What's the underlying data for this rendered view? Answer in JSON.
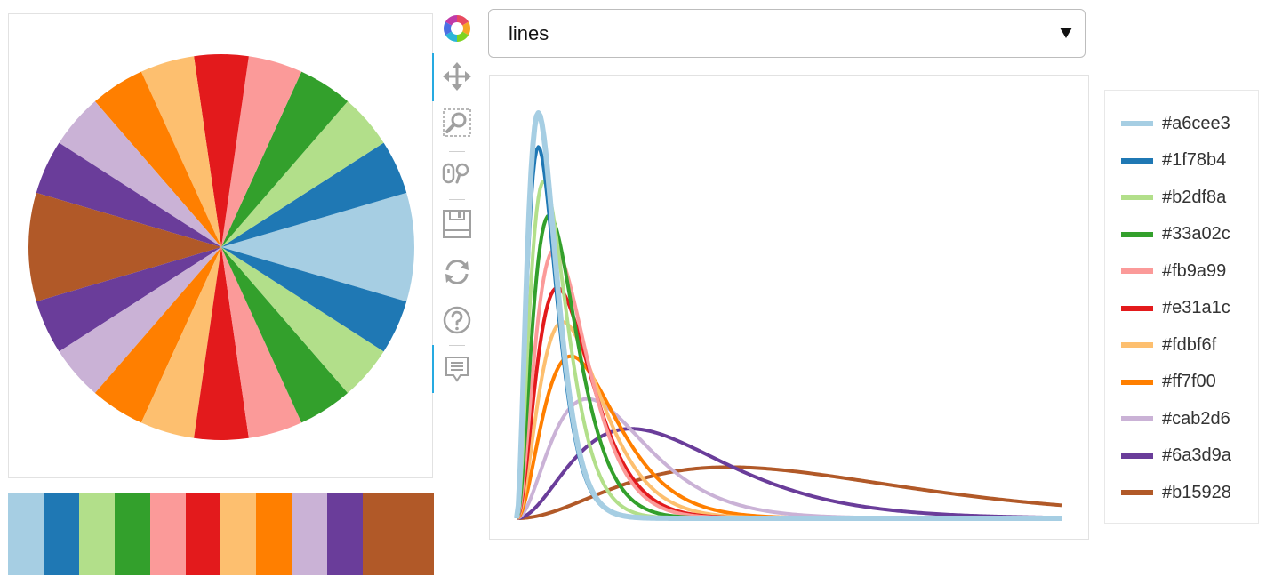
{
  "select": {
    "value": "lines"
  },
  "toolbar": {
    "tools": [
      {
        "name": "bokeh-logo-icon"
      },
      {
        "name": "pan-icon"
      },
      {
        "name": "box-zoom-icon"
      },
      {
        "name": "wheel-zoom-icon"
      },
      {
        "name": "save-icon"
      },
      {
        "name": "reset-icon"
      },
      {
        "name": "help-icon"
      },
      {
        "name": "hover-icon"
      }
    ]
  },
  "palette": [
    "#a6cee3",
    "#1f78b4",
    "#b2df8a",
    "#33a02c",
    "#fb9a99",
    "#e31a1c",
    "#fdbf6f",
    "#ff7f00",
    "#cab2d6",
    "#6a3d9a",
    "#b15928"
  ],
  "legend": {
    "items": [
      "#a6cee3",
      "#1f78b4",
      "#b2df8a",
      "#33a02c",
      "#fb9a99",
      "#e31a1c",
      "#fdbf6f",
      "#ff7f00",
      "#cab2d6",
      "#6a3d9a",
      "#b15928"
    ]
  },
  "chart_data": [
    {
      "type": "pie",
      "title": "",
      "slices": [
        {
          "color": "#a6cee3",
          "value": 1
        },
        {
          "color": "#1f78b4",
          "value": 0.5
        },
        {
          "color": "#b2df8a",
          "value": 0.5
        },
        {
          "color": "#33a02c",
          "value": 0.5
        },
        {
          "color": "#fb9a99",
          "value": 0.5
        },
        {
          "color": "#e31a1c",
          "value": 0.5
        },
        {
          "color": "#fdbf6f",
          "value": 0.5
        },
        {
          "color": "#ff7f00",
          "value": 0.5
        },
        {
          "color": "#cab2d6",
          "value": 0.5
        },
        {
          "color": "#6a3d9a",
          "value": 0.5
        },
        {
          "color": "#b15928",
          "value": 1
        },
        {
          "color": "#6a3d9a",
          "value": 0.5
        },
        {
          "color": "#cab2d6",
          "value": 0.5
        },
        {
          "color": "#ff7f00",
          "value": 0.5
        },
        {
          "color": "#fdbf6f",
          "value": 0.5
        },
        {
          "color": "#e31a1c",
          "value": 0.5
        },
        {
          "color": "#fb9a99",
          "value": 0.5
        },
        {
          "color": "#33a02c",
          "value": 0.5
        },
        {
          "color": "#b2df8a",
          "value": 0.5
        },
        {
          "color": "#1f78b4",
          "value": 0.5
        }
      ]
    },
    {
      "type": "line",
      "title": "",
      "xlabel": "",
      "ylabel": "",
      "xlim": [
        0,
        20
      ],
      "ylim": [
        0,
        1
      ],
      "grid": false,
      "legend": "right",
      "series": [
        {
          "color": "#a6cee3",
          "peak_x": 0.8,
          "peak_y": 0.95
        },
        {
          "color": "#1f78b4",
          "peak_x": 0.8,
          "peak_y": 0.87
        },
        {
          "color": "#b2df8a",
          "peak_x": 1.0,
          "peak_y": 0.79
        },
        {
          "color": "#33a02c",
          "peak_x": 1.2,
          "peak_y": 0.71
        },
        {
          "color": "#fb9a99",
          "peak_x": 1.4,
          "peak_y": 0.63
        },
        {
          "color": "#e31a1c",
          "peak_x": 1.5,
          "peak_y": 0.54
        },
        {
          "color": "#fdbf6f",
          "peak_x": 1.7,
          "peak_y": 0.46
        },
        {
          "color": "#ff7f00",
          "peak_x": 2.0,
          "peak_y": 0.38
        },
        {
          "color": "#cab2d6",
          "peak_x": 2.6,
          "peak_y": 0.28
        },
        {
          "color": "#6a3d9a",
          "peak_x": 4.2,
          "peak_y": 0.21
        },
        {
          "color": "#b15928",
          "peak_x": 7.8,
          "peak_y": 0.12
        }
      ]
    }
  ]
}
